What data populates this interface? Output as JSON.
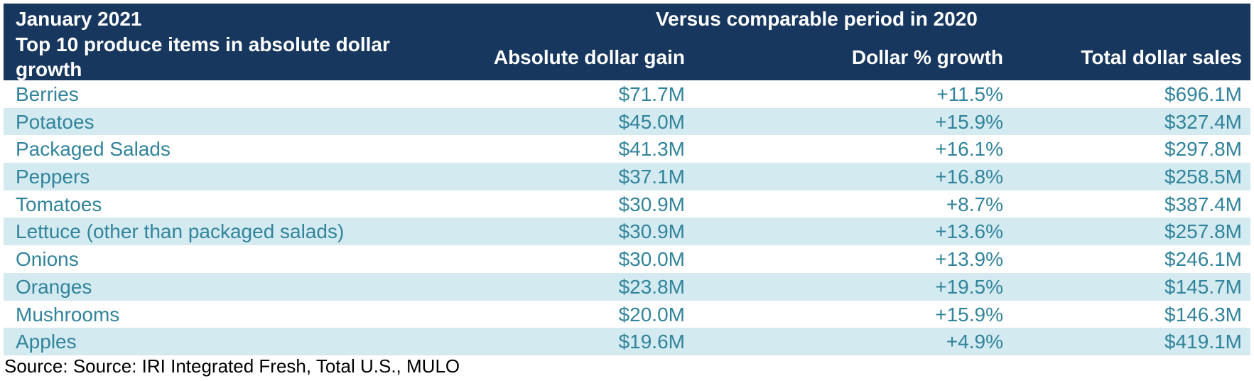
{
  "header": {
    "period": "January 2021",
    "title": "Top 10 produce items in absolute dollar growth",
    "comparison": "Versus comparable period in 2020",
    "columns": [
      "Absolute dollar gain",
      "Dollar % growth",
      "Total dollar sales"
    ]
  },
  "colors": {
    "header_bg": "#17375e",
    "header_text": "#ffffff",
    "row_alt_bg": "#d4eaf1",
    "row_text": "#31849b"
  },
  "chart_data": {
    "type": "table",
    "title": "Top 10 produce items in absolute dollar growth",
    "columns": [
      "Absolute dollar gain",
      "Dollar % growth",
      "Total dollar sales"
    ],
    "rows": [
      {
        "item": "Berries",
        "gain": "$71.7M",
        "growth": "+11.5%",
        "sales": "$696.1M"
      },
      {
        "item": "Potatoes",
        "gain": "$45.0M",
        "growth": "+15.9%",
        "sales": "$327.4M"
      },
      {
        "item": "Packaged Salads",
        "gain": "$41.3M",
        "growth": "+16.1%",
        "sales": "$297.8M"
      },
      {
        "item": "Peppers",
        "gain": "$37.1M",
        "growth": "+16.8%",
        "sales": "$258.5M"
      },
      {
        "item": "Tomatoes",
        "gain": "$30.9M",
        "growth": "+8.7%",
        "sales": "$387.4M"
      },
      {
        "item": "Lettuce (other than packaged salads)",
        "gain": "$30.9M",
        "growth": "+13.6%",
        "sales": "$257.8M"
      },
      {
        "item": "Onions",
        "gain": "$30.0M",
        "growth": "+13.9%",
        "sales": "$246.1M"
      },
      {
        "item": "Oranges",
        "gain": "$23.8M",
        "growth": "+19.5%",
        "sales": "$145.7M"
      },
      {
        "item": "Mushrooms",
        "gain": "$20.0M",
        "growth": "+15.9%",
        "sales": "$146.3M"
      },
      {
        "item": "Apples",
        "gain": "$19.6M",
        "growth": "+4.9%",
        "sales": "$419.1M"
      }
    ]
  },
  "source": "Source: Source: IRI Integrated Fresh, Total U.S., MULO"
}
